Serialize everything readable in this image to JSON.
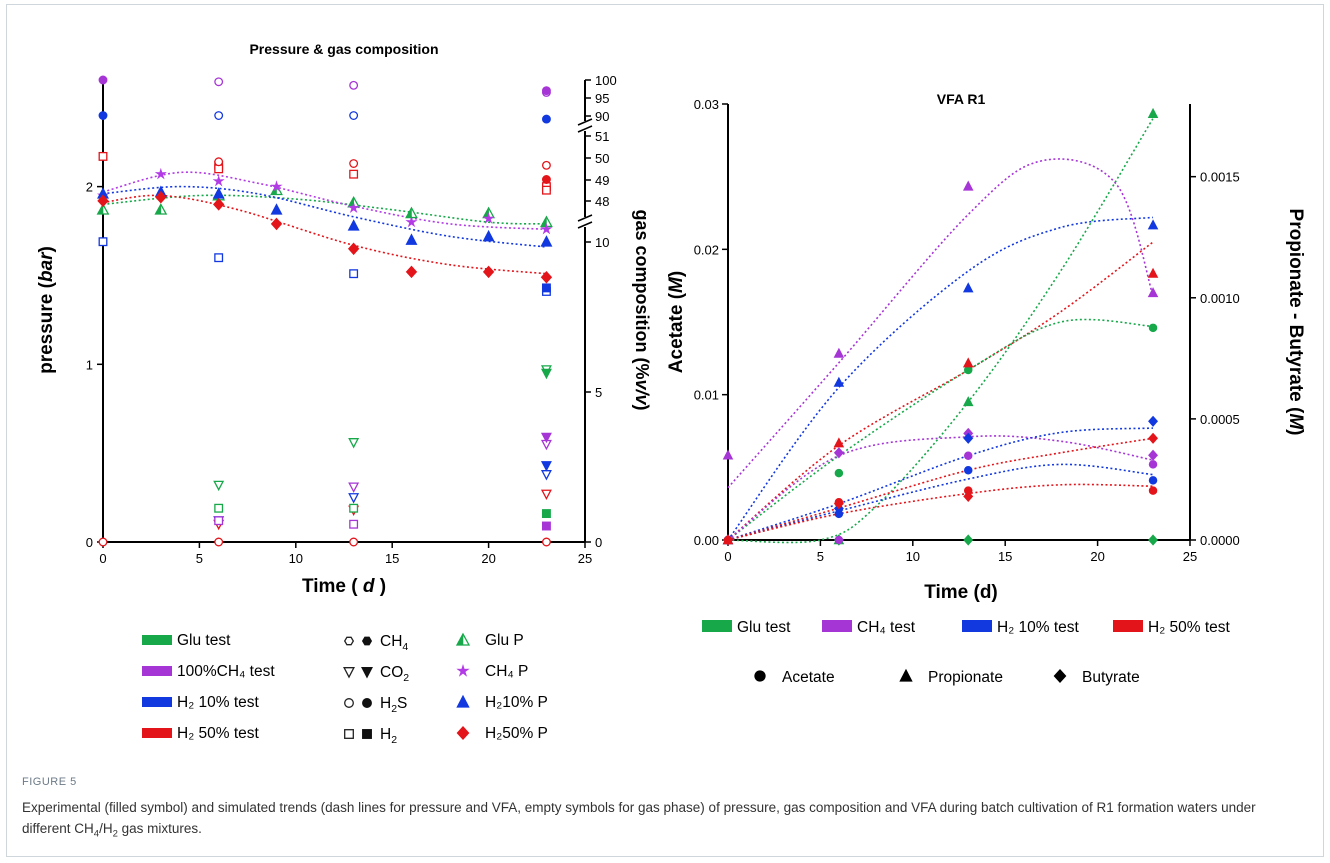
{
  "figure": {
    "label": "FIGURE 5",
    "caption_parts": [
      "Experimental (filled symbol) and simulated trends (dash lines for pressure and VFA, empty symbols for gas phase) of pressure, gas composition and VFA during batch cultivation of R1 formation waters under different CH",
      "4",
      "/H",
      "2",
      " gas mixtures."
    ]
  },
  "colors": {
    "green": "#17a84a",
    "green_light": "#4dc53a",
    "purple": "#a635d6",
    "purple_bright": "#b23be6",
    "blue": "#1238e0",
    "red": "#e3151b"
  },
  "left_chart": {
    "title": "Pressure & gas composition",
    "xlabel": "Time ( d )",
    "xlabel_parts": [
      "Time ( ",
      "d",
      " )"
    ],
    "ylabel_parts": [
      "pressure (",
      "bar",
      ")"
    ],
    "y2label_parts": [
      "gas composition (%",
      "v/v",
      ")"
    ],
    "xticks": [
      "0",
      "5",
      "10",
      "15",
      "20",
      "25"
    ],
    "yticks": [
      "0",
      "1",
      "2"
    ],
    "y2_lower_ticks": [
      "0",
      "5",
      "10"
    ],
    "y2_middle_ticks": [
      "48",
      "49",
      "50",
      "51"
    ],
    "y2_upper_ticks": [
      "90",
      "95",
      "100"
    ],
    "legend_left": [
      {
        "label": "Glu test",
        "color": "green"
      },
      {
        "label": "100%CH₄ test",
        "color": "purple"
      },
      {
        "label": "H₂ 10% test",
        "color": "blue"
      },
      {
        "label": "H₂ 50% test",
        "color": "red"
      }
    ],
    "legend_mid": [
      {
        "label": "CH",
        "sub": "4",
        "symbol": "hexagon"
      },
      {
        "label": "CO",
        "sub": "2",
        "symbol": "triangle-down"
      },
      {
        "label": "H",
        "sub": "2",
        "suffix": "S",
        "symbol": "circle"
      },
      {
        "label": "H",
        "sub": "2",
        "symbol": "square"
      }
    ],
    "legend_right": [
      {
        "label": "Glu P",
        "color": "green",
        "symbol": "half-triangle"
      },
      {
        "label": "CH₄ P",
        "color": "purple_bright",
        "symbol": "star"
      },
      {
        "label": "H₂10% P",
        "color": "blue",
        "symbol": "triangle"
      },
      {
        "label": "H₂50% P",
        "color": "red",
        "symbol": "diamond"
      }
    ]
  },
  "right_chart": {
    "title": "VFA R1",
    "xlabel": "Time (d)",
    "ylabel_parts": [
      "Acetate (",
      "M",
      ")"
    ],
    "y2label_parts": [
      "Propionate - Butyrate (",
      "M",
      ")"
    ],
    "xticks": [
      "0",
      "5",
      "10",
      "15",
      "20",
      "25"
    ],
    "yticks": [
      "0.00",
      "0.01",
      "0.02",
      "0.03"
    ],
    "y2ticks": [
      "0.0000",
      "0.0005",
      "0.0010",
      "0.0015"
    ],
    "legend_colors": [
      {
        "label": "Glu test",
        "color": "green"
      },
      {
        "label": "CH₄ test",
        "color": "purple"
      },
      {
        "label": "H₂ 10% test",
        "color": "blue"
      },
      {
        "label": "H₂ 50% test",
        "color": "red"
      }
    ],
    "legend_symbols": [
      {
        "label": "Acetate",
        "symbol": "circle"
      },
      {
        "label": "Propionate",
        "symbol": "triangle"
      },
      {
        "label": "Butyrate",
        "symbol": "diamond"
      }
    ]
  },
  "chart_data": [
    {
      "type": "scatter",
      "title": "Pressure & gas composition",
      "xlabel": "Time ( d )",
      "ylabel": "pressure (bar)",
      "y2label": "gas composition (%v/v)",
      "xlim": [
        0,
        25
      ],
      "ylim": [
        0,
        2.6
      ],
      "y2_axis": "broken: 0-10 linear, 48-51, 90-100",
      "series": [
        {
          "name": "Glu P",
          "color": "green",
          "marker": "half-triangle",
          "x": [
            0,
            3,
            6,
            9,
            13,
            16,
            20,
            23
          ],
          "y": [
            1.87,
            1.87,
            1.95,
            1.98,
            1.91,
            1.85,
            1.85,
            1.8
          ]
        },
        {
          "name": "CH₄ P",
          "color": "purple_bright",
          "marker": "star",
          "x": [
            0,
            3,
            6,
            9,
            13,
            16,
            20,
            23
          ],
          "y": [
            1.95,
            2.07,
            2.03,
            2.0,
            1.88,
            1.8,
            1.82,
            1.76
          ]
        },
        {
          "name": "H₂10% P",
          "color": "blue",
          "marker": "triangle",
          "x": [
            0,
            3,
            6,
            9,
            13,
            16,
            20,
            23
          ],
          "y": [
            1.96,
            1.97,
            1.96,
            1.87,
            1.78,
            1.7,
            1.72,
            1.69
          ]
        },
        {
          "name": "H₂50% P",
          "color": "red",
          "marker": "diamond",
          "x": [
            0,
            3,
            6,
            9,
            13,
            16,
            20,
            23
          ],
          "y": [
            1.92,
            1.94,
            1.9,
            1.79,
            1.65,
            1.52,
            1.52,
            1.49
          ]
        }
      ],
      "fits": [
        {
          "series": "Glu P",
          "color": "green",
          "x": [
            0,
            5,
            10,
            15,
            20,
            23
          ],
          "y": [
            1.9,
            1.95,
            1.93,
            1.87,
            1.8,
            1.79
          ]
        },
        {
          "series": "CH₄ P",
          "color": "purple_bright",
          "x": [
            0,
            4,
            8,
            13,
            18,
            23
          ],
          "y": [
            1.97,
            2.08,
            2.02,
            1.89,
            1.79,
            1.76
          ]
        },
        {
          "series": "H₂10% P",
          "color": "blue",
          "x": [
            0,
            4,
            8,
            13,
            18,
            23
          ],
          "y": [
            1.96,
            2.0,
            1.96,
            1.83,
            1.72,
            1.66
          ]
        },
        {
          "series": "H₂50% P",
          "color": "red",
          "x": [
            0,
            3,
            7,
            13,
            18,
            23
          ],
          "y": [
            1.91,
            1.95,
            1.87,
            1.67,
            1.56,
            1.51
          ]
        }
      ],
      "gas_points_pressure_scale": [
        {
          "gas": "CH₄",
          "color": "purple",
          "filled": true,
          "x": [
            0
          ],
          "y": [
            2.6
          ]
        },
        {
          "gas": "CH₄",
          "color": "purple",
          "filled": false,
          "x": [
            6,
            13,
            23
          ],
          "y": [
            2.59,
            2.57,
            2.53
          ]
        },
        {
          "gas": "CH₄",
          "color": "purple",
          "filled": true,
          "x": [
            23
          ],
          "y": [
            2.54
          ]
        },
        {
          "gas": "H₂S",
          "color": "blue",
          "filled": false,
          "x": [
            6,
            13
          ],
          "y": [
            2.4,
            2.4
          ]
        },
        {
          "gas": "H₂S",
          "color": "blue",
          "filled": true,
          "x": [
            0,
            23
          ],
          "y": [
            2.4,
            2.38
          ]
        },
        {
          "gas": "H₂",
          "color": "red",
          "filled": false,
          "x": [
            0,
            6,
            6,
            13,
            23,
            23
          ],
          "y": [
            2.17,
            2.12,
            2.1,
            2.07,
            2.0,
            1.98
          ]
        },
        {
          "gas": "H₂S",
          "color": "red",
          "filled": false,
          "x": [
            6,
            13,
            23
          ],
          "y": [
            2.14,
            2.13,
            2.12
          ]
        },
        {
          "gas": "H₂S",
          "color": "red",
          "filled": true,
          "x": [
            23
          ],
          "y": [
            2.04
          ]
        },
        {
          "gas": "H₂",
          "color": "blue",
          "filled": false,
          "x": [
            0,
            6,
            13,
            23
          ],
          "y": [
            1.69,
            1.6,
            1.51,
            1.41
          ]
        },
        {
          "gas": "H₂",
          "color": "blue",
          "filled": true,
          "x": [
            23
          ],
          "y": [
            1.43
          ]
        },
        {
          "gas": "CO₂",
          "color": "green",
          "filled": false,
          "x": [
            6,
            13,
            23
          ],
          "y": [
            0.32,
            0.56,
            0.97
          ]
        },
        {
          "gas": "CO₂",
          "color": "green",
          "filled": true,
          "x": [
            23
          ],
          "y": [
            0.95
          ]
        },
        {
          "gas": "CO₂",
          "color": "purple",
          "filled": false,
          "x": [
            13,
            23
          ],
          "y": [
            0.31,
            0.55
          ]
        },
        {
          "gas": "CO₂",
          "color": "purple",
          "filled": true,
          "x": [
            23
          ],
          "y": [
            0.59
          ]
        },
        {
          "gas": "CO₂",
          "color": "blue",
          "filled": false,
          "x": [
            6,
            13,
            23
          ],
          "y": [
            0.12,
            0.25,
            0.38
          ]
        },
        {
          "gas": "CO₂",
          "color": "blue",
          "filled": true,
          "x": [
            23
          ],
          "y": [
            0.43
          ]
        },
        {
          "gas": "CO₂",
          "color": "red",
          "filled": false,
          "x": [
            6,
            13,
            23
          ],
          "y": [
            0.1,
            0.18,
            0.27
          ]
        },
        {
          "gas": "H₂",
          "color": "green",
          "filled": false,
          "x": [
            6,
            13
          ],
          "y": [
            0.19,
            0.19
          ]
        },
        {
          "gas": "H₂",
          "color": "green",
          "filled": true,
          "x": [
            23
          ],
          "y": [
            0.16
          ]
        },
        {
          "gas": "H₂",
          "color": "purple",
          "filled": false,
          "x": [
            6,
            13
          ],
          "y": [
            0.12,
            0.1
          ]
        },
        {
          "gas": "H₂",
          "color": "purple",
          "filled": true,
          "x": [
            23
          ],
          "y": [
            0.09
          ]
        },
        {
          "gas": "H₂S",
          "color": "red",
          "filled": false,
          "x": [
            0,
            6,
            13,
            23
          ],
          "y": [
            0,
            0,
            0,
            0
          ]
        }
      ]
    },
    {
      "type": "scatter",
      "title": "VFA R1",
      "xlabel": "Time (d)",
      "ylabel": "Acetate (M)",
      "y2label": "Propionate - Butyrate (M)",
      "xlim": [
        0,
        25
      ],
      "ylim": [
        0,
        0.03
      ],
      "y2lim": [
        0,
        0.0018
      ],
      "series": [
        {
          "name": "Glu test Acetate",
          "color": "green",
          "marker": "circle",
          "axis": "left",
          "x": [
            0,
            6,
            13,
            23
          ],
          "y": [
            0.0,
            0.0046,
            0.0117,
            0.0146
          ]
        },
        {
          "name": "Glu test Propionate",
          "color": "green",
          "marker": "triangle",
          "axis": "right",
          "x": [
            0,
            6,
            13,
            23
          ],
          "y": [
            0.0,
            0.0,
            0.00057,
            0.00176
          ]
        },
        {
          "name": "Glu test Butyrate",
          "color": "green",
          "marker": "diamond",
          "axis": "right",
          "x": [
            0,
            6,
            13,
            23
          ],
          "y": [
            0.0,
            0.0,
            0.0,
            0.0
          ]
        },
        {
          "name": "CH₄ test Acetate",
          "color": "purple",
          "marker": "circle",
          "axis": "left",
          "x": [
            0,
            6,
            13,
            23
          ],
          "y": [
            0.0,
            0.0,
            0.0058,
            0.0052
          ]
        },
        {
          "name": "CH₄ test Propionate",
          "color": "purple",
          "marker": "triangle",
          "axis": "right",
          "x": [
            0,
            6,
            13,
            23
          ],
          "y": [
            0.00035,
            0.00077,
            0.00146,
            0.00102
          ]
        },
        {
          "name": "CH₄ test Butyrate",
          "color": "purple",
          "marker": "diamond",
          "axis": "right",
          "x": [
            0,
            6,
            13,
            23
          ],
          "y": [
            0.0,
            0.00036,
            0.00044,
            0.00035
          ]
        },
        {
          "name": "H₂ 10% test Acetate",
          "color": "blue",
          "marker": "circle",
          "axis": "left",
          "x": [
            0,
            6,
            13,
            23
          ],
          "y": [
            0.0,
            0.0018,
            0.0048,
            0.0041
          ]
        },
        {
          "name": "H₂ 10% test Propionate",
          "color": "blue",
          "marker": "triangle",
          "axis": "right",
          "x": [
            0,
            6,
            13,
            23
          ],
          "y": [
            0.0,
            0.00065,
            0.00104,
            0.0013
          ]
        },
        {
          "name": "H₂ 10% test Butyrate",
          "color": "blue",
          "marker": "diamond",
          "axis": "right",
          "x": [
            0,
            6,
            13,
            23
          ],
          "y": [
            0.0,
            0.00013,
            0.00042,
            0.00049
          ]
        },
        {
          "name": "H₂ 50% test Acetate",
          "color": "red",
          "marker": "circle",
          "axis": "left",
          "x": [
            0,
            6,
            13,
            23
          ],
          "y": [
            0.0,
            0.0026,
            0.0034,
            0.0034
          ]
        },
        {
          "name": "H₂ 50% test Propionate",
          "color": "red",
          "marker": "triangle",
          "axis": "right",
          "x": [
            0,
            6,
            13,
            23
          ],
          "y": [
            0.0,
            0.0004,
            0.00073,
            0.0011
          ]
        },
        {
          "name": "H₂ 50% test Butyrate",
          "color": "red",
          "marker": "diamond",
          "axis": "right",
          "x": [
            0,
            6,
            13,
            23
          ],
          "y": [
            0.0,
            0.00015,
            0.00018,
            0.00042
          ]
        }
      ],
      "fits": [
        {
          "color": "purple",
          "x": [
            0,
            6,
            13,
            17,
            21,
            23
          ],
          "y": [
            0.0036,
            0.0122,
            0.0224,
            0.0261,
            0.0245,
            0.0168
          ]
        },
        {
          "color": "blue",
          "x": [
            0,
            6,
            13,
            18,
            23
          ],
          "y": [
            0.0,
            0.0105,
            0.0185,
            0.0215,
            0.0222
          ]
        },
        {
          "color": "red",
          "x": [
            0,
            6,
            13,
            18,
            23
          ],
          "y": [
            0.0,
            0.0065,
            0.0117,
            0.0157,
            0.0205
          ]
        },
        {
          "color": "green",
          "x": [
            0,
            6,
            13,
            18,
            23
          ],
          "y": [
            0.0,
            0.0058,
            0.0117,
            0.015,
            0.0147
          ]
        },
        {
          "color": "green",
          "x": [
            0,
            5,
            8,
            13,
            18,
            23
          ],
          "y": [
            0.0,
            0.0,
            0.0023,
            0.0095,
            0.0185,
            0.029
          ]
        },
        {
          "color": "purple",
          "x": [
            0,
            6,
            13,
            18,
            23
          ],
          "y": [
            0.0,
            0.0058,
            0.0071,
            0.0068,
            0.0055
          ]
        },
        {
          "color": "blue",
          "x": [
            0,
            6,
            13,
            18,
            23
          ],
          "y": [
            0.0,
            0.0025,
            0.0058,
            0.0074,
            0.0077
          ]
        },
        {
          "color": "red",
          "x": [
            0,
            6,
            13,
            18,
            23
          ],
          "y": [
            0.0,
            0.0022,
            0.0048,
            0.006,
            0.007
          ]
        },
        {
          "color": "blue",
          "x": [
            0,
            6,
            13,
            18,
            23
          ],
          "y": [
            0.0,
            0.002,
            0.0042,
            0.0052,
            0.0045
          ]
        },
        {
          "color": "red",
          "x": [
            0,
            6,
            13,
            18,
            23
          ],
          "y": [
            0.0,
            0.0018,
            0.0032,
            0.0038,
            0.0037
          ]
        }
      ]
    }
  ]
}
